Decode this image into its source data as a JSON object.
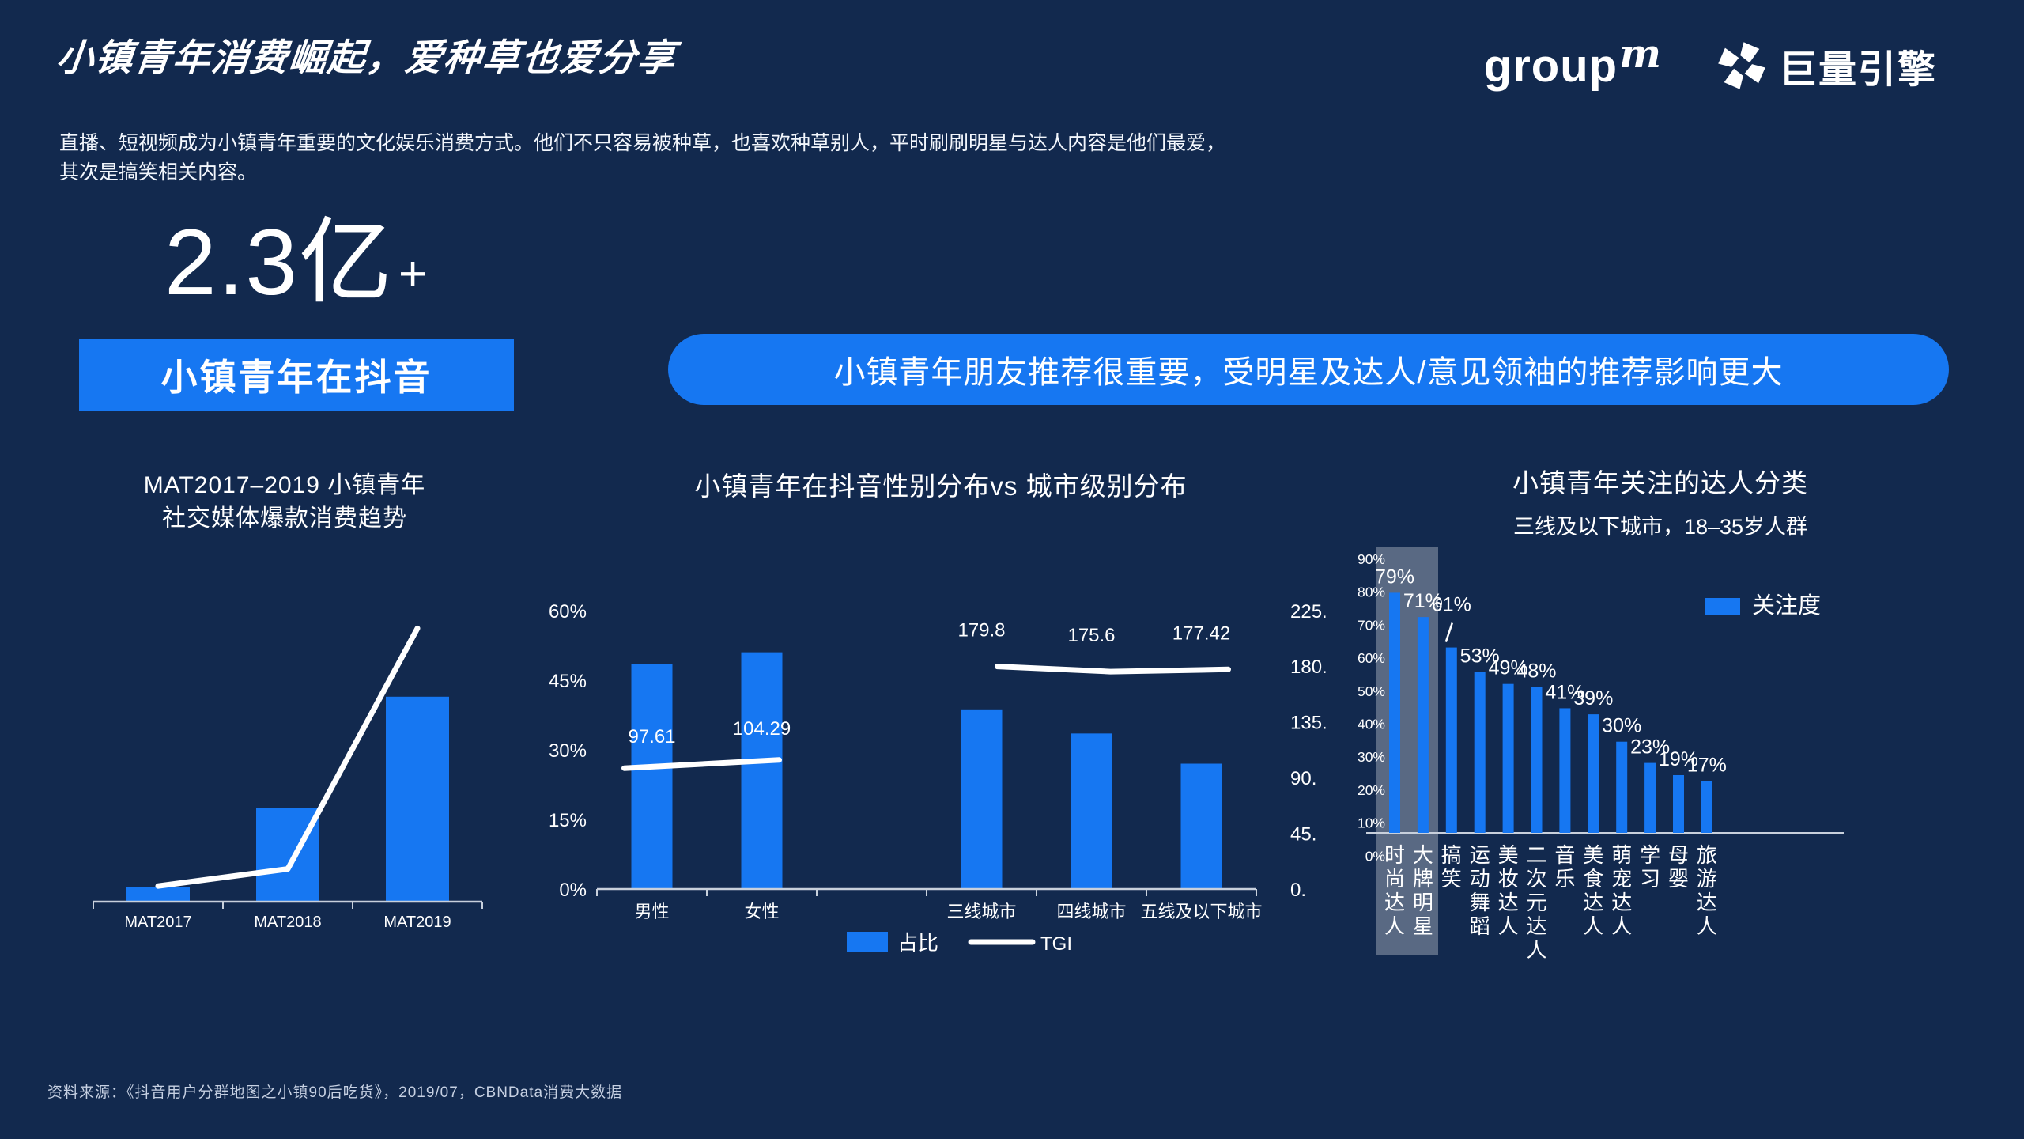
{
  "header": {
    "title": "小镇青年消费崛起，爱种草也爱分享",
    "subtitle_line1": "直播、短视频成为小镇青年重要的文化娱乐消费方式。他们不只容易被种草，也喜欢种草别人，平时刷刷明星与达人内容是他们最爱，",
    "subtitle_line2": "其次是搞笑相关内容。",
    "logo_groupm_word": "group",
    "logo_groupm_m": "m",
    "logo_engine_text": "巨量引擎"
  },
  "highlights": {
    "big_number": "2.3亿",
    "big_number_suffix": "+",
    "audience_label": "小镇青年在抖音",
    "pill_text": "小镇青年朋友推荐很重要，受明星及达人/意见领袖的推荐影响更大"
  },
  "source_note": "资料来源：《抖音用户分群地图之小镇90后吃货》，2019/07，CBNData消费大数据",
  "colors": {
    "background": "#12294E",
    "accent_blue": "#1677F2",
    "white": "#FFFFFF",
    "axis": "#C8D0DC",
    "highlight_box": "rgba(255,255,255,0.30)",
    "muted_text": "#C6D0E2"
  },
  "chart_data": [
    {
      "id": "trend",
      "type": "bar",
      "title_line1": "MAT2017–2019 小镇青年",
      "title_line2": "社交媒体爆款消费趋势",
      "categories": [
        "MAT2017",
        "MAT2018",
        "MAT2019"
      ],
      "bar_values_relative": [
        5,
        33,
        72
      ],
      "line_values_relative": [
        5.5,
        11.5,
        96
      ],
      "note": "无数值轴标签，白色趋势线叠加于柱形之上",
      "legend_position": "none",
      "grid": false
    },
    {
      "id": "gender-city",
      "type": "bar",
      "title": "小镇青年在抖音性别分布vs 城市级别分布",
      "categories": [
        "男性",
        "女性",
        "",
        "三线城市",
        "四线城市",
        "五线及以下城市"
      ],
      "series": [
        {
          "name": "占比",
          "axis": "left",
          "unit": "%",
          "values": [
            48.5,
            51,
            null,
            38.7,
            33.5,
            27
          ]
        },
        {
          "name": "TGI",
          "axis": "right",
          "values": [
            97.61,
            104.29,
            null,
            179.8,
            175.6,
            177.42
          ],
          "labels": [
            "97.61",
            "104.29",
            null,
            "179.8",
            "175.6",
            "177.42"
          ]
        }
      ],
      "left_axis": {
        "range": [
          0,
          60
        ],
        "ticks": [
          "0%",
          "15%",
          "30%",
          "45%",
          "60%"
        ]
      },
      "right_axis": {
        "range": [
          0,
          225
        ],
        "ticks": [
          "0.",
          "45.",
          "90.",
          "135.",
          "180.",
          "225."
        ]
      },
      "legend": [
        "占比",
        "TGI"
      ],
      "legend_position": "bottom",
      "grid": false
    },
    {
      "id": "daren-categories",
      "type": "bar",
      "title": "小镇青年关注的达人分类",
      "subtitle": "三线及以下城市，18–35岁人群",
      "categories": [
        "时尚达人",
        "大牌明星",
        "搞笑",
        "运动舞蹈",
        "美妆达人",
        "二次元达人",
        "音乐",
        "美食达人",
        "萌宠达人",
        "学习",
        "母婴",
        "旅游达人"
      ],
      "values": [
        79,
        71,
        61,
        53,
        49,
        48,
        41,
        39,
        30,
        23,
        19,
        17
      ],
      "value_labels": [
        "79%",
        "71%",
        "61%",
        "53%",
        "49%",
        "48%",
        "41%",
        "39%",
        "30%",
        "23%",
        "19%",
        "17%"
      ],
      "y_axis": {
        "range": [
          0,
          90
        ],
        "ticks": [
          "90%",
          "80%",
          "70%",
          "60%",
          "50%",
          "40%",
          "30%",
          "20%",
          "10%",
          "0%"
        ]
      },
      "legend": [
        "关注度"
      ],
      "legend_position": "right-inside",
      "highlighted_categories": [
        "时尚达人",
        "大牌明星"
      ],
      "grid": false
    }
  ]
}
